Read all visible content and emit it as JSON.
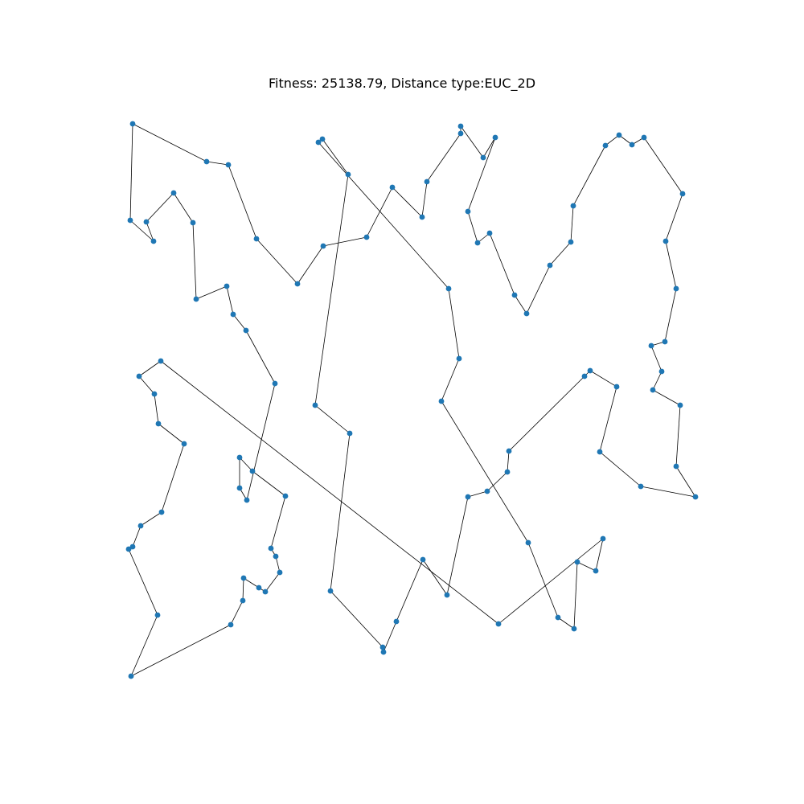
{
  "chart_data": {
    "type": "line",
    "title": "Fitness: 25138.79, Distance type:EUC_2D",
    "xlabel": "",
    "ylabel": "",
    "axes_visible": false,
    "grid": false,
    "markers": true,
    "closed_tour": false,
    "series": [
      {
        "line_color": "#000000",
        "marker_color": "#1f77b4",
        "points": [
          [
            165,
            154
          ],
          [
            257,
            201
          ],
          [
            284,
            205
          ],
          [
            319,
            297
          ],
          [
            370,
            353
          ],
          [
            402,
            306
          ],
          [
            456,
            295
          ],
          [
            488,
            233
          ],
          [
            525,
            270
          ],
          [
            531,
            226
          ],
          [
            573,
            166
          ],
          [
            573,
            157
          ],
          [
            601,
            196
          ],
          [
            616,
            171
          ],
          [
            582,
            263
          ],
          [
            594,
            302
          ],
          [
            609,
            290
          ],
          [
            640,
            367
          ],
          [
            655,
            390
          ],
          [
            684,
            330
          ],
          [
            710,
            301
          ],
          [
            713,
            256
          ],
          [
            753,
            181
          ],
          [
            770,
            168
          ],
          [
            786,
            180
          ],
          [
            801,
            171
          ],
          [
            849,
            241
          ],
          [
            828,
            300
          ],
          [
            841,
            359
          ],
          [
            827,
            425
          ],
          [
            810,
            430
          ],
          [
            823,
            462
          ],
          [
            812,
            485
          ],
          [
            846,
            504
          ],
          [
            841,
            580
          ],
          [
            865,
            618
          ],
          [
            797,
            605
          ],
          [
            746,
            562
          ],
          [
            767,
            481
          ],
          [
            734,
            461
          ],
          [
            727,
            468
          ],
          [
            633,
            561
          ],
          [
            631,
            587
          ],
          [
            606,
            611
          ],
          [
            582,
            618
          ],
          [
            556,
            740
          ],
          [
            526,
            696
          ],
          [
            493,
            773
          ],
          [
            477,
            811
          ],
          [
            476,
            805
          ],
          [
            411,
            735
          ],
          [
            435,
            539
          ],
          [
            392,
            504
          ],
          [
            433,
            217
          ],
          [
            401,
            173
          ],
          [
            396,
            177
          ],
          [
            558,
            359
          ],
          [
            571,
            446
          ],
          [
            549,
            499
          ],
          [
            657,
            675
          ],
          [
            694,
            768
          ],
          [
            714,
            782
          ],
          [
            718,
            699
          ],
          [
            741,
            710
          ],
          [
            750,
            670
          ],
          [
            620,
            776
          ],
          [
            200,
            449
          ],
          [
            173,
            468
          ],
          [
            192,
            490
          ],
          [
            197,
            527
          ],
          [
            229,
            552
          ],
          [
            201,
            637
          ],
          [
            175,
            654
          ],
          [
            165,
            680
          ],
          [
            160,
            683
          ],
          [
            196,
            765
          ],
          [
            163,
            841
          ],
          [
            287,
            777
          ],
          [
            302,
            747
          ],
          [
            303,
            719
          ],
          [
            322,
            731
          ],
          [
            330,
            736
          ],
          [
            348,
            712
          ],
          [
            343,
            692
          ],
          [
            337,
            682
          ],
          [
            355,
            617
          ],
          [
            314,
            586
          ],
          [
            298,
            569
          ],
          [
            298,
            607
          ],
          [
            307,
            622
          ],
          [
            342,
            477
          ],
          [
            306,
            411
          ],
          [
            290,
            391
          ],
          [
            282,
            356
          ],
          [
            244,
            372
          ],
          [
            240,
            277
          ],
          [
            216,
            240
          ],
          [
            182,
            276
          ],
          [
            191,
            300
          ],
          [
            162,
            274
          ],
          [
            165,
            154
          ]
        ]
      }
    ]
  }
}
